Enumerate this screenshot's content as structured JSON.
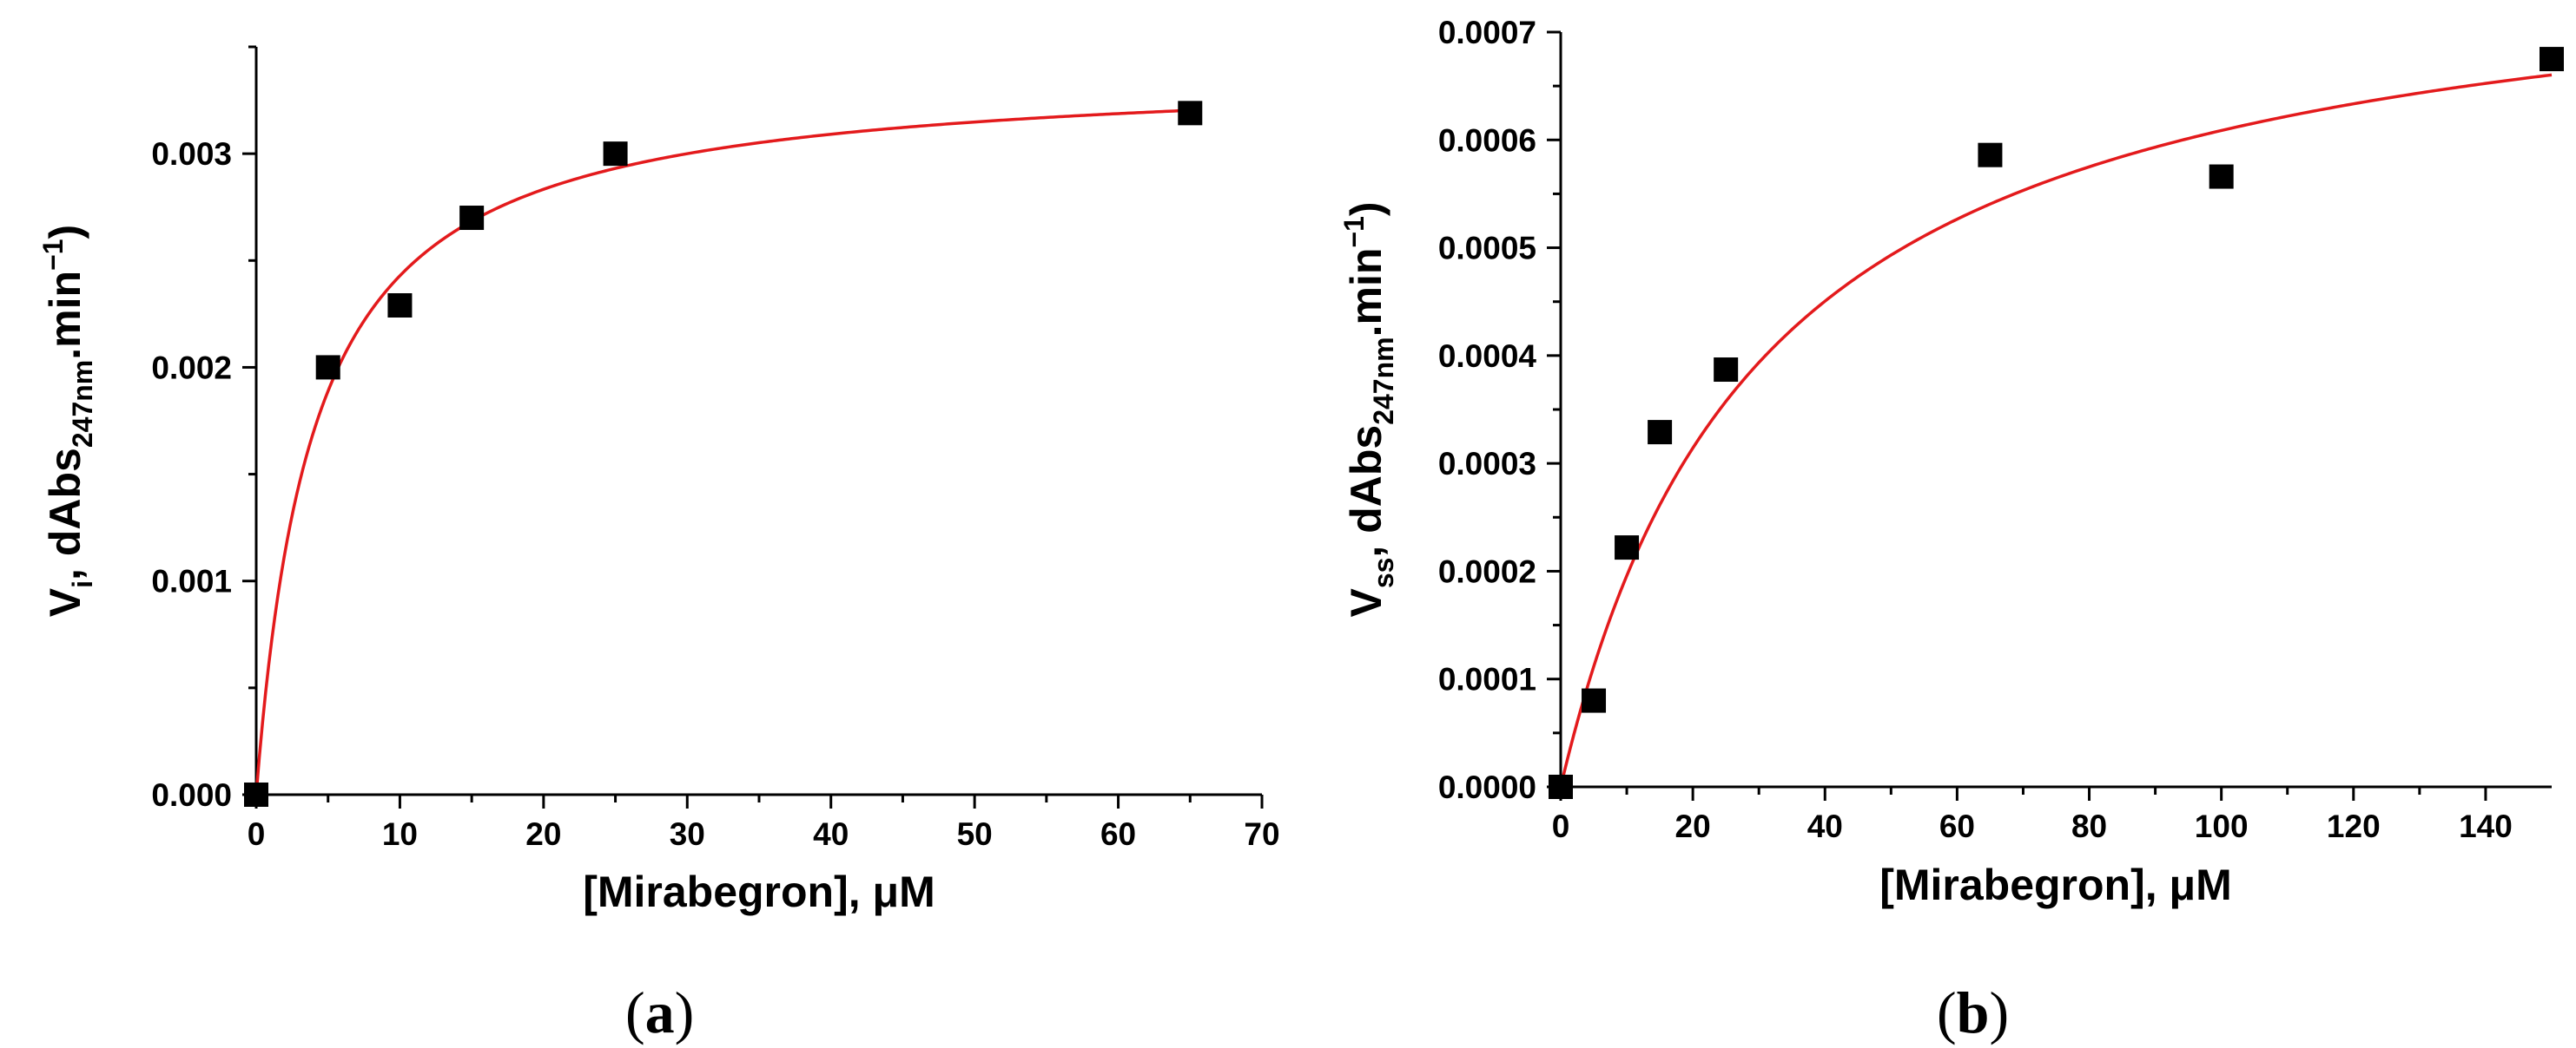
{
  "chart_data": [
    {
      "type": "scatter",
      "panel_label": "a",
      "xlabel": "[Mirabegron], μM",
      "ylabel": {
        "main": "V",
        "subscript": "i",
        "sep": ", ",
        "unit": "dAbs",
        "unit_sub": "247nm",
        "rest": ".min",
        "sup": "−1",
        "close": ")"
      },
      "xlim": [
        0,
        70
      ],
      "ylim": [
        0,
        0.0035
      ],
      "xticks": [
        "0",
        "10",
        "20",
        "30",
        "40",
        "50",
        "60",
        "70"
      ],
      "xtick_values": [
        0,
        10,
        20,
        30,
        40,
        50,
        60,
        70
      ],
      "yticks": [
        "0.000",
        "0.001",
        "0.002",
        "0.003"
      ],
      "ytick_values": [
        0,
        0.001,
        0.002,
        0.003
      ],
      "series": [
        {
          "marker": "square",
          "color": "#000000",
          "x": [
            0,
            5,
            10,
            15,
            25,
            65
          ],
          "y": [
            0,
            0.002,
            0.00229,
            0.0027,
            0.003,
            0.00319
          ]
        }
      ],
      "fit": {
        "model": "hyperbolic",
        "color": "#e31a1c",
        "vmax": 0.0034,
        "km": 4.0,
        "x_range": [
          0,
          65
        ]
      }
    },
    {
      "type": "scatter",
      "panel_label": "b",
      "xlabel": "[Mirabegron], μM",
      "ylabel": {
        "main": "V",
        "subscript": "ss",
        "sep": ", ",
        "unit": "dAbs",
        "unit_sub": "247nm",
        "rest": ".min",
        "sup": "−1",
        "close": ")"
      },
      "xlim": [
        0,
        150
      ],
      "ylim": [
        0,
        0.0007
      ],
      "xticks": [
        "0",
        "20",
        "40",
        "60",
        "80",
        "100",
        "120",
        "140"
      ],
      "xtick_values": [
        0,
        20,
        40,
        60,
        80,
        100,
        120,
        140
      ],
      "yticks": [
        "0.0000",
        "0.0001",
        "0.0002",
        "0.0003",
        "0.0004",
        "0.0005",
        "0.0006",
        "0.0007"
      ],
      "ytick_values": [
        0,
        0.0001,
        0.0002,
        0.0003,
        0.0004,
        0.0005,
        0.0006,
        0.0007
      ],
      "series": [
        {
          "marker": "square",
          "color": "#000000",
          "x": [
            0,
            5,
            10,
            15,
            25,
            65,
            100,
            150
          ],
          "y": [
            0,
            8e-05,
            0.000222,
            0.000329,
            0.000387,
            0.000586,
            0.000566,
            0.000675
          ]
        }
      ],
      "fit": {
        "model": "hyperbolic",
        "color": "#e31a1c",
        "vmax": 0.000795,
        "km": 30.6,
        "x_range": [
          0,
          150
        ]
      }
    }
  ]
}
